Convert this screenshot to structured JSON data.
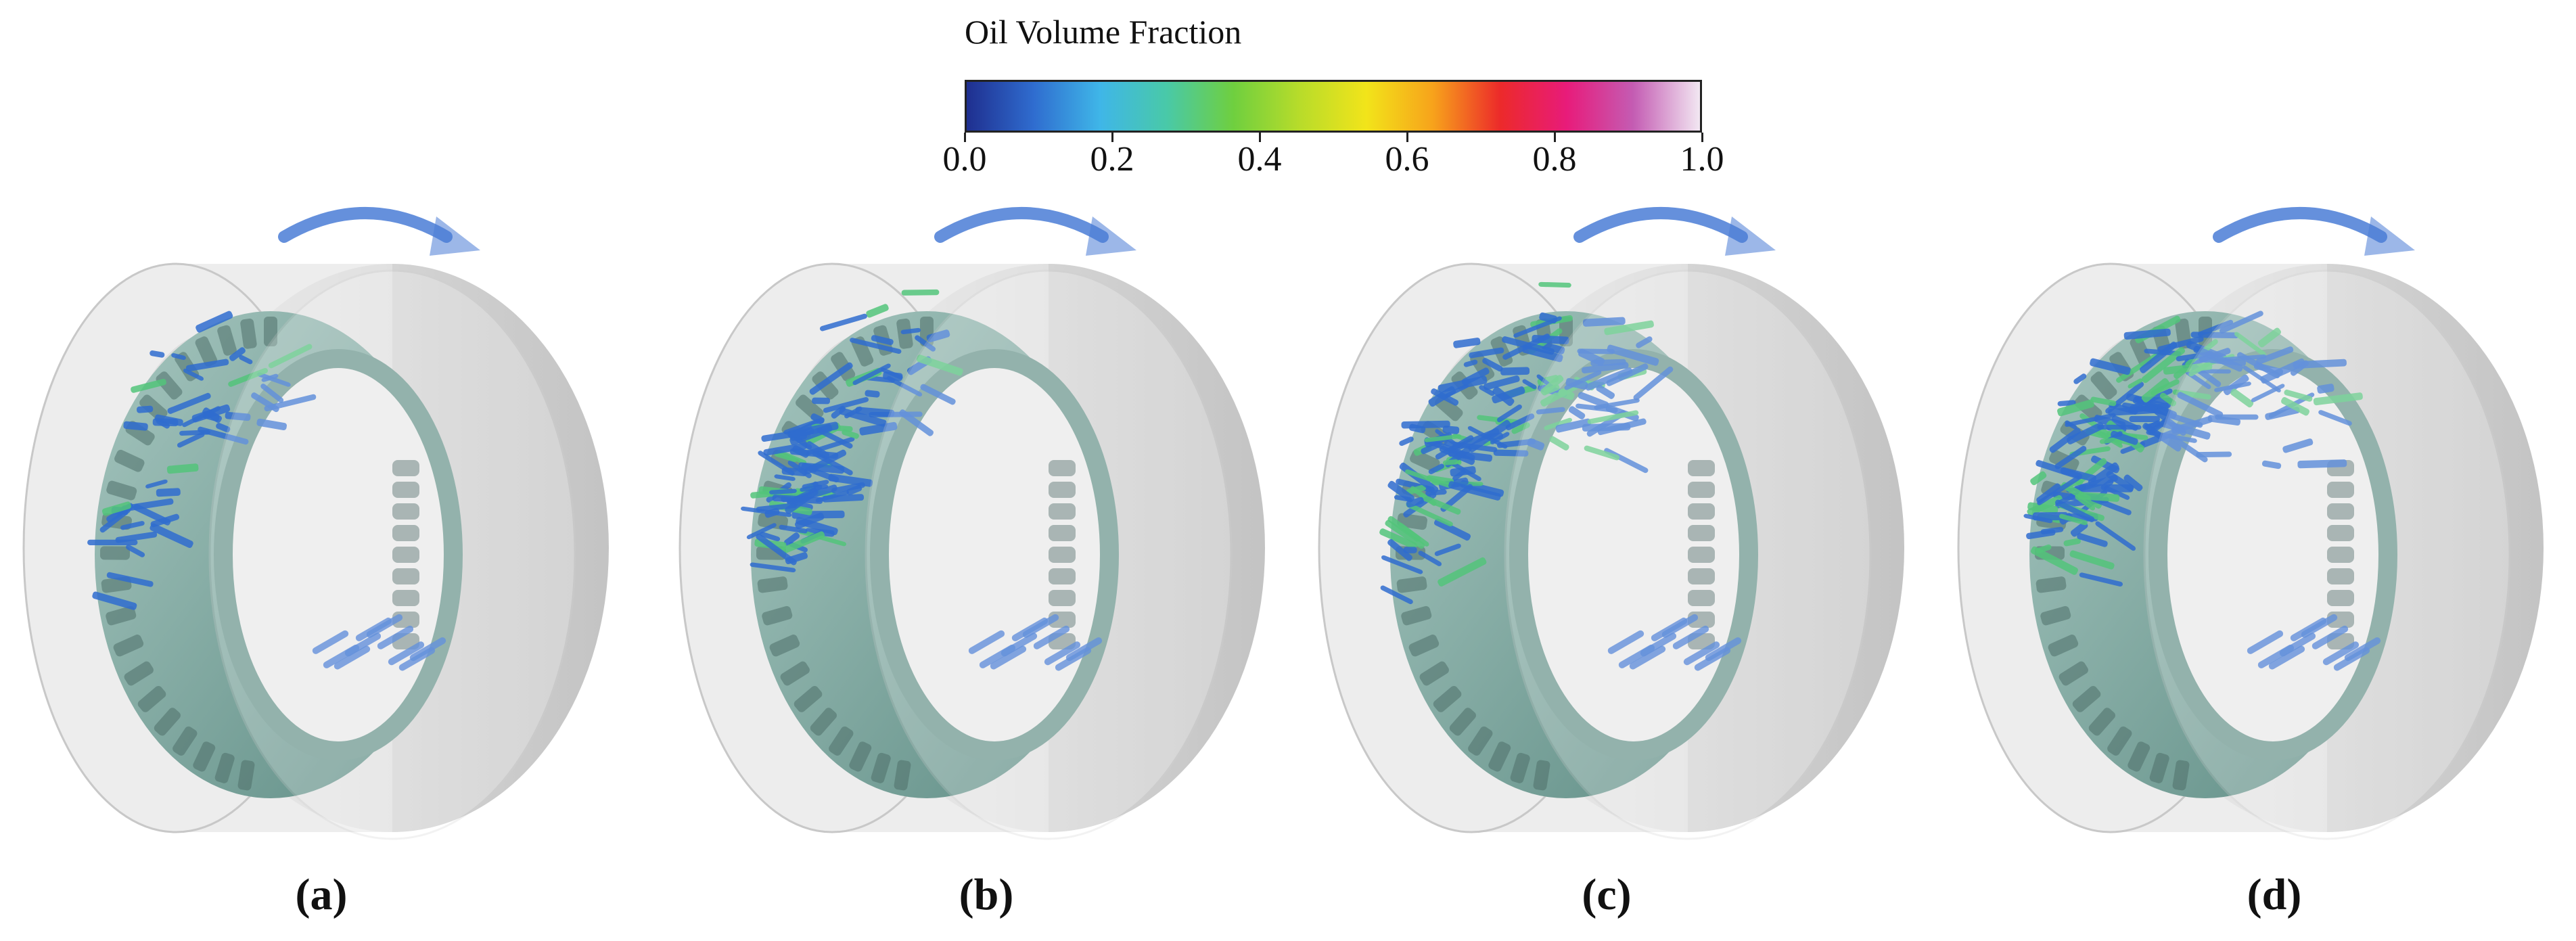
{
  "colorbar": {
    "title": "Oil Volume Fraction",
    "ticks": [
      "0.0",
      "0.2",
      "0.4",
      "0.6",
      "0.8",
      "1.0"
    ],
    "colormap": [
      "#1f2f8f",
      "#2f6ccf",
      "#3fb6e8",
      "#49c9a8",
      "#6fcf3f",
      "#b8dc2a",
      "#f2e41a",
      "#f7a21b",
      "#ec2a2a",
      "#e81b7a",
      "#c45cb3",
      "#f2e7f2"
    ]
  },
  "rotation_arrow": {
    "icon": "curved-arrow-right-icon",
    "color": "#4a7cd6"
  },
  "panels": [
    {
      "label": "(a)",
      "oil_coverage": 0.2
    },
    {
      "label": "(b)",
      "oil_coverage": 0.55
    },
    {
      "label": "(c)",
      "oil_coverage": 0.8
    },
    {
      "label": "(d)",
      "oil_coverage": 0.9
    }
  ],
  "colors": {
    "housing": "#d9d9d9",
    "cage": "#7fa8a0",
    "oil": "#2f6ccf",
    "oil_rich": "#52c47a"
  }
}
